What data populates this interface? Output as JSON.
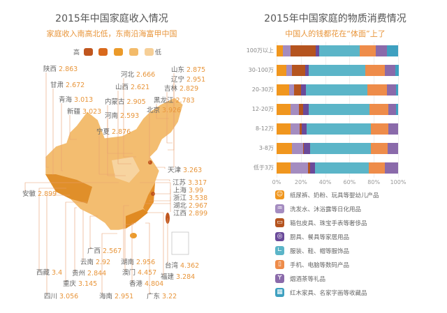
{
  "left": {
    "title": "2015年中国家庭收入情况",
    "subtitle": "家庭收入南高北低，东南沿海富甲中国",
    "scale": {
      "high": "高",
      "low": "低",
      "colors": [
        "#c0561e",
        "#d9691c",
        "#eb9a2a",
        "#f3bb6a",
        "#f6cf97"
      ]
    },
    "provinces": [
      {
        "name": "陕西",
        "value": "2.863"
      },
      {
        "name": "甘肃",
        "value": "2.672"
      },
      {
        "name": "青海",
        "value": "3.013"
      },
      {
        "name": "新疆",
        "value": "3.023"
      },
      {
        "name": "内蒙古",
        "value": "2.905"
      },
      {
        "name": "河南",
        "value": "2.593"
      },
      {
        "name": "宁夏",
        "value": "2.876"
      },
      {
        "name": "河北",
        "value": "2.666"
      },
      {
        "name": "山西",
        "value": "2.621"
      },
      {
        "name": "北京",
        "value": "3.926"
      },
      {
        "name": "黑龙江",
        "value": "2.783"
      },
      {
        "name": "吉林",
        "value": "2.829"
      },
      {
        "name": "辽宁",
        "value": "2.951"
      },
      {
        "name": "山东",
        "value": "2.875"
      },
      {
        "name": "天津",
        "value": "3.263"
      },
      {
        "name": "江苏",
        "value": "3.317"
      },
      {
        "name": "上海",
        "value": "3.99"
      },
      {
        "name": "浙江",
        "value": "3.538"
      },
      {
        "name": "湖北",
        "value": "2.967"
      },
      {
        "name": "江西",
        "value": "2.899"
      },
      {
        "name": "安徽",
        "value": "2.899"
      },
      {
        "name": "西藏",
        "value": "3.4"
      },
      {
        "name": "四川",
        "value": "3.056"
      },
      {
        "name": "重庆",
        "value": "3.145"
      },
      {
        "name": "贵州",
        "value": "2.844"
      },
      {
        "name": "云南",
        "value": "2.92"
      },
      {
        "name": "广西",
        "value": "2.567"
      },
      {
        "name": "海南",
        "value": "2.951"
      },
      {
        "name": "湖南",
        "value": "2.956"
      },
      {
        "name": "澳门",
        "value": "4.457"
      },
      {
        "name": "香港",
        "value": "4.804"
      },
      {
        "name": "广东",
        "value": "3.22"
      },
      {
        "name": "台湾",
        "value": "4.362"
      },
      {
        "name": "福建",
        "value": "3.284"
      }
    ]
  },
  "chart_data": {
    "type": "bar",
    "orientation": "horizontal",
    "stacked": true,
    "title": "2015年中国家庭的物质消费情况",
    "subtitle": "中国人的钱都花在“体面”上了",
    "categories": [
      "100万以上",
      "30-100万",
      "20-30万",
      "12-20万",
      "8-12万",
      "3-8万",
      "低于3万"
    ],
    "xlim": [
      0,
      100
    ],
    "xticks": [
      "0%",
      "20%",
      "40%",
      "60%",
      "80%",
      "100%"
    ],
    "legend_position": "bottom",
    "series": [
      {
        "name": "纸尿裤、奶粉、玩具等婴幼儿产品",
        "color": "#f0961e",
        "icon": "smiley-icon",
        "values": [
          5.4,
          8.3,
          10.6,
          11.7,
          11.5,
          12.5,
          11.7
        ]
      },
      {
        "name": "洗发水、沐浴露等日化用品",
        "color": "#a48cc0",
        "icon": "shower-icon",
        "values": [
          6.3,
          4.2,
          4.0,
          6.5,
          7.3,
          9.2,
          14.4
        ]
      },
      {
        "name": "箱包皮具、珠宝手表等奢侈品",
        "color": "#b5541f",
        "icon": "briefcase-icon",
        "values": [
          20.6,
          10.8,
          5.6,
          3.8,
          1.7,
          0.6,
          1.7
        ]
      },
      {
        "name": "厨具、餐具等家居用品",
        "color": "#6a4a9a",
        "icon": "kitchenware-icon",
        "values": [
          2.5,
          3.3,
          4.0,
          4.2,
          4.4,
          5.2,
          4.0
        ]
      },
      {
        "name": "服装、鞋、帽等服饰品",
        "color": "#5bb5c8",
        "icon": "boot-icon",
        "values": [
          33.7,
          46.2,
          50.4,
          50.2,
          52.5,
          50.0,
          44.2
        ]
      },
      {
        "name": "手机、电脑等数码产品",
        "color": "#ee8c4a",
        "icon": "phone-icon",
        "values": [
          12.9,
          16.3,
          16.0,
          15.6,
          14.8,
          13.8,
          12.9
        ]
      },
      {
        "name": "烟酒茶等礼品",
        "color": "#8a6aaa",
        "icon": "wine-glass-icon",
        "values": [
          9.6,
          8.7,
          7.7,
          6.5,
          7.7,
          8.7,
          11.0
        ]
      },
      {
        "name": "红木家具、名家字画等收藏品",
        "color": "#3ea0c0",
        "icon": "painting-icon",
        "values": [
          9.0,
          2.3,
          1.7,
          1.4,
          0,
          0,
          0
        ]
      }
    ]
  }
}
